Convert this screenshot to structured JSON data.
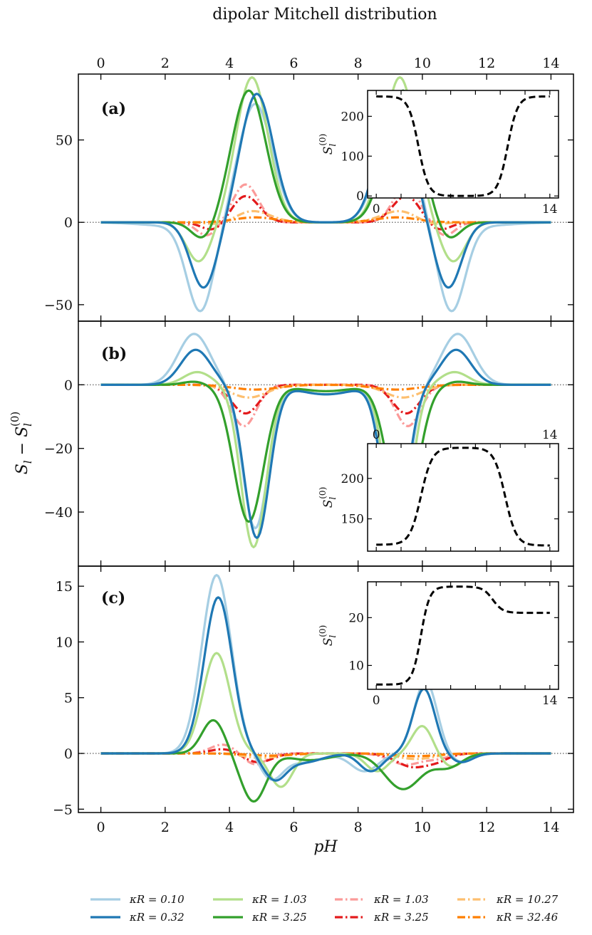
{
  "chart_data": {
    "type": "line",
    "title": "dipolar Mitchell distribution",
    "xlabel": "pH",
    "ylabel": "S_l − S_l^(0)",
    "ylabel_parts": {
      "main": "S",
      "sub1": "l",
      "minus": " − ",
      "main2": "S",
      "sub2": "l",
      "sup": "(0)"
    },
    "xlim": [
      -0.7,
      14.7
    ],
    "xticks": [
      "0",
      "2",
      "4",
      "6",
      "8",
      "10",
      "12",
      "14"
    ],
    "legend": [
      {
        "label": "κR = 0.10",
        "color": "#a6cee3",
        "dash": "solid"
      },
      {
        "label": "κR = 0.32",
        "color": "#1f78b4",
        "dash": "solid"
      },
      {
        "label": "κR = 1.03",
        "color": "#b2df8a",
        "dash": "solid"
      },
      {
        "label": "κR = 3.25",
        "color": "#33a02c",
        "dash": "solid"
      },
      {
        "label": "κR = 1.03",
        "color": "#fb9a99",
        "dash": "dashdot"
      },
      {
        "label": "κR = 3.25",
        "color": "#e31a1c",
        "dash": "dashdot"
      },
      {
        "label": "κR = 10.27",
        "color": "#fdbf6f",
        "dash": "dashdot"
      },
      {
        "label": "κR = 32.46",
        "color": "#ff7f00",
        "dash": "dashdot"
      }
    ],
    "panels": [
      {
        "label": "(a)",
        "ylim": [
          -60,
          90
        ],
        "yticks": [
          -50,
          0,
          50
        ],
        "yticklabels": [
          "−50",
          "0",
          "50"
        ],
        "series": [
          {
            "name": "κR = 0.10",
            "comps": [
              [
                4.8,
                0.75,
                72
              ],
              [
                3.1,
                0.6,
                -53
              ],
              [
                2.2,
                1.4,
                -2
              ],
              [
                9.2,
                0.75,
                72
              ],
              [
                10.9,
                0.6,
                -53
              ],
              [
                11.8,
                1.4,
                -2
              ]
            ]
          },
          {
            "name": "κR = 0.32",
            "comps": [
              [
                4.85,
                0.72,
                78
              ],
              [
                3.2,
                0.58,
                -40
              ],
              [
                9.15,
                0.72,
                78
              ],
              [
                10.8,
                0.58,
                -40
              ]
            ]
          },
          {
            "name": "κR = 1.03",
            "comps": [
              [
                4.7,
                0.7,
                88
              ],
              [
                3.05,
                0.55,
                -24
              ],
              [
                9.3,
                0.7,
                88
              ],
              [
                10.95,
                0.55,
                -24
              ]
            ]
          },
          {
            "name": "κR = 3.25",
            "comps": [
              [
                4.6,
                0.75,
                80
              ],
              [
                3.2,
                0.5,
                -11
              ],
              [
                9.4,
                0.75,
                80
              ],
              [
                10.8,
                0.5,
                -11
              ]
            ]
          },
          {
            "name": "κR = 1.03",
            "comps": [
              [
                4.5,
                0.55,
                23
              ],
              [
                3.3,
                0.45,
                -8
              ],
              [
                9.5,
                0.55,
                23
              ],
              [
                10.7,
                0.45,
                -8
              ]
            ]
          },
          {
            "name": "κR = 3.25",
            "comps": [
              [
                4.5,
                0.6,
                16
              ],
              [
                3.5,
                0.5,
                -5
              ],
              [
                9.5,
                0.6,
                16
              ],
              [
                10.5,
                0.5,
                -5
              ]
            ]
          },
          {
            "name": "κR = 10.27",
            "comps": [
              [
                4.7,
                0.8,
                7
              ],
              [
                3.8,
                0.6,
                -2
              ],
              [
                9.3,
                0.8,
                7
              ],
              [
                10.2,
                0.6,
                -2
              ]
            ]
          },
          {
            "name": "κR = 32.46",
            "comps": [
              [
                4.8,
                0.9,
                3
              ],
              [
                9.2,
                0.9,
                3
              ]
            ]
          }
        ],
        "inset": {
          "ylim": [
            -5,
            265
          ],
          "yticks": [
            0,
            100,
            200
          ],
          "yticklabels": [
            "0",
            "100",
            "200"
          ],
          "xticklabels": [
            "0",
            "14"
          ],
          "xtick_position": "bottom",
          "ylabel": {
            "main": "S",
            "sub": "l",
            "sup": "(0)"
          },
          "curve": {
            "type": "tanh2",
            "base": 0,
            "left": 250,
            "right": 250,
            "c1": 3.4,
            "w1": 0.4,
            "c2": 10.6,
            "w2": 0.4
          }
        }
      },
      {
        "label": "(b)",
        "ylim": [
          -57,
          20
        ],
        "yticks": [
          -40,
          -20,
          0
        ],
        "yticklabels": [
          "−40",
          "−20",
          "0"
        ],
        "series": [
          {
            "name": "κR = 0.10",
            "comps": [
              [
                2.9,
                0.7,
                16
              ],
              [
                4.8,
                0.55,
                -45
              ],
              [
                7.0,
                1.2,
                -3
              ],
              [
                11.1,
                0.7,
                16
              ],
              [
                9.2,
                0.55,
                -45
              ]
            ]
          },
          {
            "name": "κR = 0.32",
            "comps": [
              [
                2.95,
                0.65,
                11
              ],
              [
                4.85,
                0.55,
                -48
              ],
              [
                7.0,
                1.2,
                -3
              ],
              [
                11.05,
                0.65,
                11
              ],
              [
                9.15,
                0.55,
                -48
              ]
            ]
          },
          {
            "name": "κR = 1.03",
            "comps": [
              [
                3.0,
                0.6,
                4
              ],
              [
                4.75,
                0.55,
                -51
              ],
              [
                7.0,
                1.1,
                -3
              ],
              [
                11.0,
                0.6,
                4
              ],
              [
                9.25,
                0.55,
                -51
              ]
            ]
          },
          {
            "name": "κR = 3.25",
            "comps": [
              [
                2.9,
                0.5,
                1
              ],
              [
                4.6,
                0.65,
                -43
              ],
              [
                7.0,
                1.2,
                -2
              ],
              [
                11.1,
                0.5,
                1
              ],
              [
                9.4,
                0.65,
                -43
              ]
            ]
          },
          {
            "name": "κR = 1.03",
            "comps": [
              [
                4.45,
                0.55,
                -13
              ],
              [
                9.55,
                0.55,
                -13
              ]
            ]
          },
          {
            "name": "κR = 3.25",
            "comps": [
              [
                4.5,
                0.6,
                -9
              ],
              [
                9.5,
                0.6,
                -9
              ]
            ]
          },
          {
            "name": "κR = 10.27",
            "comps": [
              [
                4.6,
                0.8,
                -4
              ],
              [
                9.4,
                0.8,
                -4
              ]
            ]
          },
          {
            "name": "κR = 32.46",
            "comps": [
              [
                4.8,
                1.0,
                -1.5
              ],
              [
                9.2,
                1.0,
                -1.5
              ]
            ]
          }
        ],
        "inset": {
          "ylim": [
            110,
            243
          ],
          "yticks": [
            150,
            200
          ],
          "yticklabels": [
            "150",
            "200"
          ],
          "xticklabels": [
            "0",
            "14"
          ],
          "xtick_position": "top",
          "ylabel": {
            "main": "S",
            "sub": "l",
            "sup": "(0)"
          },
          "curve": {
            "type": "tanh2",
            "base": 238,
            "left": 118,
            "right": 117,
            "c1": 3.6,
            "w1": 0.45,
            "c2": 10.4,
            "w2": 0.45
          }
        }
      },
      {
        "label": "(c)",
        "ylim": [
          -5.3,
          16.8
        ],
        "yticks": [
          -5,
          0,
          5,
          10,
          15
        ],
        "yticklabels": [
          "−5",
          "0",
          "5",
          "10",
          "15"
        ],
        "series": [
          {
            "name": "κR = 0.10",
            "comps": [
              [
                3.6,
                0.65,
                16
              ],
              [
                5.3,
                0.5,
                -2.2
              ],
              [
                6.3,
                0.8,
                -0.8
              ],
              [
                8.2,
                0.6,
                -1.6
              ],
              [
                10.1,
                0.5,
                6.5
              ],
              [
                11.2,
                0.5,
                -0.8
              ]
            ]
          },
          {
            "name": "κR = 0.32",
            "comps": [
              [
                3.65,
                0.62,
                14
              ],
              [
                5.4,
                0.5,
                -2.2
              ],
              [
                6.3,
                0.8,
                -0.8
              ],
              [
                8.4,
                0.5,
                -1.6
              ],
              [
                10.05,
                0.48,
                5.8
              ],
              [
                11.2,
                0.5,
                -0.8
              ]
            ]
          },
          {
            "name": "κR = 1.03",
            "comps": [
              [
                3.6,
                0.6,
                9
              ],
              [
                5.6,
                0.5,
                -3
              ],
              [
                8.6,
                0.5,
                -1.6
              ],
              [
                10.0,
                0.45,
                2.5
              ],
              [
                10.9,
                0.5,
                -1.2
              ]
            ]
          },
          {
            "name": "κR = 3.25",
            "comps": [
              [
                3.5,
                0.5,
                3.0
              ],
              [
                4.75,
                0.55,
                -4.3
              ],
              [
                6.5,
                0.9,
                -0.6
              ],
              [
                9.4,
                0.8,
                -3.2
              ],
              [
                10.8,
                0.6,
                -1.2
              ]
            ]
          },
          {
            "name": "κR = 1.03",
            "comps": [
              [
                3.8,
                0.55,
                0.8
              ],
              [
                4.8,
                0.5,
                -1.0
              ],
              [
                9.5,
                0.7,
                -1.0
              ],
              [
                10.5,
                0.5,
                -0.4
              ]
            ]
          },
          {
            "name": "κR = 3.25",
            "comps": [
              [
                3.8,
                0.55,
                0.4
              ],
              [
                4.9,
                0.6,
                -0.8
              ],
              [
                9.7,
                0.7,
                -1.2
              ],
              [
                10.5,
                0.5,
                -0.5
              ]
            ]
          },
          {
            "name": "κR = 10.27",
            "comps": [
              [
                5.0,
                0.8,
                -0.4
              ],
              [
                9.8,
                0.8,
                -0.5
              ]
            ]
          },
          {
            "name": "κR = 32.46",
            "comps": [
              [
                5.3,
                0.9,
                -0.2
              ],
              [
                9.8,
                0.9,
                -0.25
              ]
            ]
          }
        ],
        "inset": {
          "ylim": [
            5,
            27.5
          ],
          "yticks": [
            10,
            20
          ],
          "yticklabels": [
            "10",
            "20"
          ],
          "xticklabels": [
            "0",
            "14"
          ],
          "xtick_position": "bottom",
          "ylabel": {
            "main": "S",
            "sub": "l",
            "sup": "(0)"
          },
          "curve": {
            "type": "steps",
            "start": 6,
            "steps": [
              [
                3.6,
                0.35,
                20.5
              ],
              [
                9.4,
                0.4,
                -5.5
              ]
            ]
          }
        }
      }
    ]
  }
}
